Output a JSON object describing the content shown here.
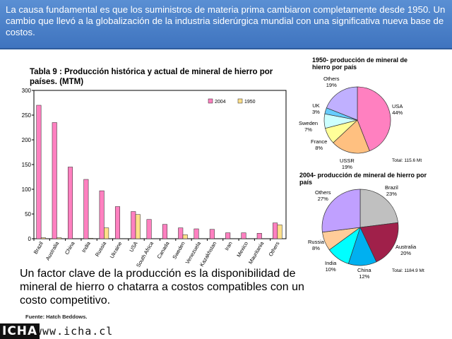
{
  "header": {
    "text": "La causa fundamental es que  los suministros de materia prima cambiaron completamente desde 1950. Un cambio que llevó  a la globalización de la industria siderúrgica mundial  con una significativa nueva base de costos."
  },
  "bottom_text": "Un  factor clave de la producción es la disponibilidad de mineral de hierro o chatarra a costos  compatibles con un costo competitivo.",
  "source": "Fuente: Hatch Beddows.",
  "footer": {
    "logo": "ICHA",
    "url": "www.icha.cl"
  },
  "colors": {
    "series2004": "#ff80c0",
    "series1950": "#ffe08a",
    "header_bg": "#4a80c8"
  },
  "chart_data": [
    {
      "type": "bar",
      "title": "Tabla 9 : Producción histórica y actual de mineral de hierro por países. (MTM)",
      "categories": [
        "Brazil",
        "Australia",
        "China",
        "India",
        "Russia",
        "Ukraine",
        "USA",
        "South Africa",
        "Canada",
        "Sweden",
        "Venezuela",
        "Kazakhstan",
        "Iran",
        "Mexico",
        "Mauritania",
        "Others"
      ],
      "series": [
        {
          "name": "2004",
          "color": "#ff80c0",
          "values": [
            270,
            235,
            145,
            120,
            97,
            65,
            55,
            39,
            29,
            22,
            20,
            19,
            12,
            12,
            11,
            32
          ]
        },
        {
          "name": "1950",
          "color": "#ffe08a",
          "values": [
            2,
            2,
            0,
            1,
            22,
            0,
            49,
            0,
            0,
            8,
            0,
            0,
            0,
            0,
            0,
            28
          ]
        }
      ],
      "ylim": [
        0,
        300
      ],
      "yticks": [
        "0",
        "50",
        "100",
        "150",
        "200",
        "250",
        "300"
      ],
      "legend_placement": "top-right",
      "grid": false
    },
    {
      "type": "pie",
      "title": "1950- producción de mineral de hierro por país",
      "total": "Total: 115.6 Mt",
      "slices": [
        {
          "label": "USA",
          "pct_text": "44%",
          "value": 44,
          "color": "#ff80c0"
        },
        {
          "label": "USSR",
          "pct_text": "19%",
          "value": 19,
          "color": "#ffc080"
        },
        {
          "label": "France",
          "pct_text": "8%",
          "value": 8,
          "color": "#ffff99"
        },
        {
          "label": "Sweden",
          "pct_text": "7%",
          "value": 7,
          "color": "#ccffff"
        },
        {
          "label": "UK",
          "pct_text": "3%",
          "value": 3,
          "color": "#66ccff"
        },
        {
          "label": "Others",
          "pct_text": "19%",
          "value": 19,
          "color": "#c0b0ff"
        }
      ]
    },
    {
      "type": "pie",
      "title": "2004- producción de mineral de hierro por país",
      "total": "Total: 1184.9 Mt",
      "slices": [
        {
          "label": "Brazil",
          "pct_text": "23%",
          "value": 23,
          "color": "#c0c0c0"
        },
        {
          "label": "Australia",
          "pct_text": "20%",
          "value": 20,
          "color": "#a0204a"
        },
        {
          "label": "China",
          "pct_text": "12%",
          "value": 12,
          "color": "#00b0f0"
        },
        {
          "label": "India",
          "pct_text": "10%",
          "value": 10,
          "color": "#00ffff"
        },
        {
          "label": "Russia",
          "pct_text": "8%",
          "value": 8,
          "color": "#ffcc99"
        },
        {
          "label": "Others",
          "pct_text": "27%",
          "value": 27,
          "color": "#c0a0ff"
        }
      ]
    }
  ]
}
